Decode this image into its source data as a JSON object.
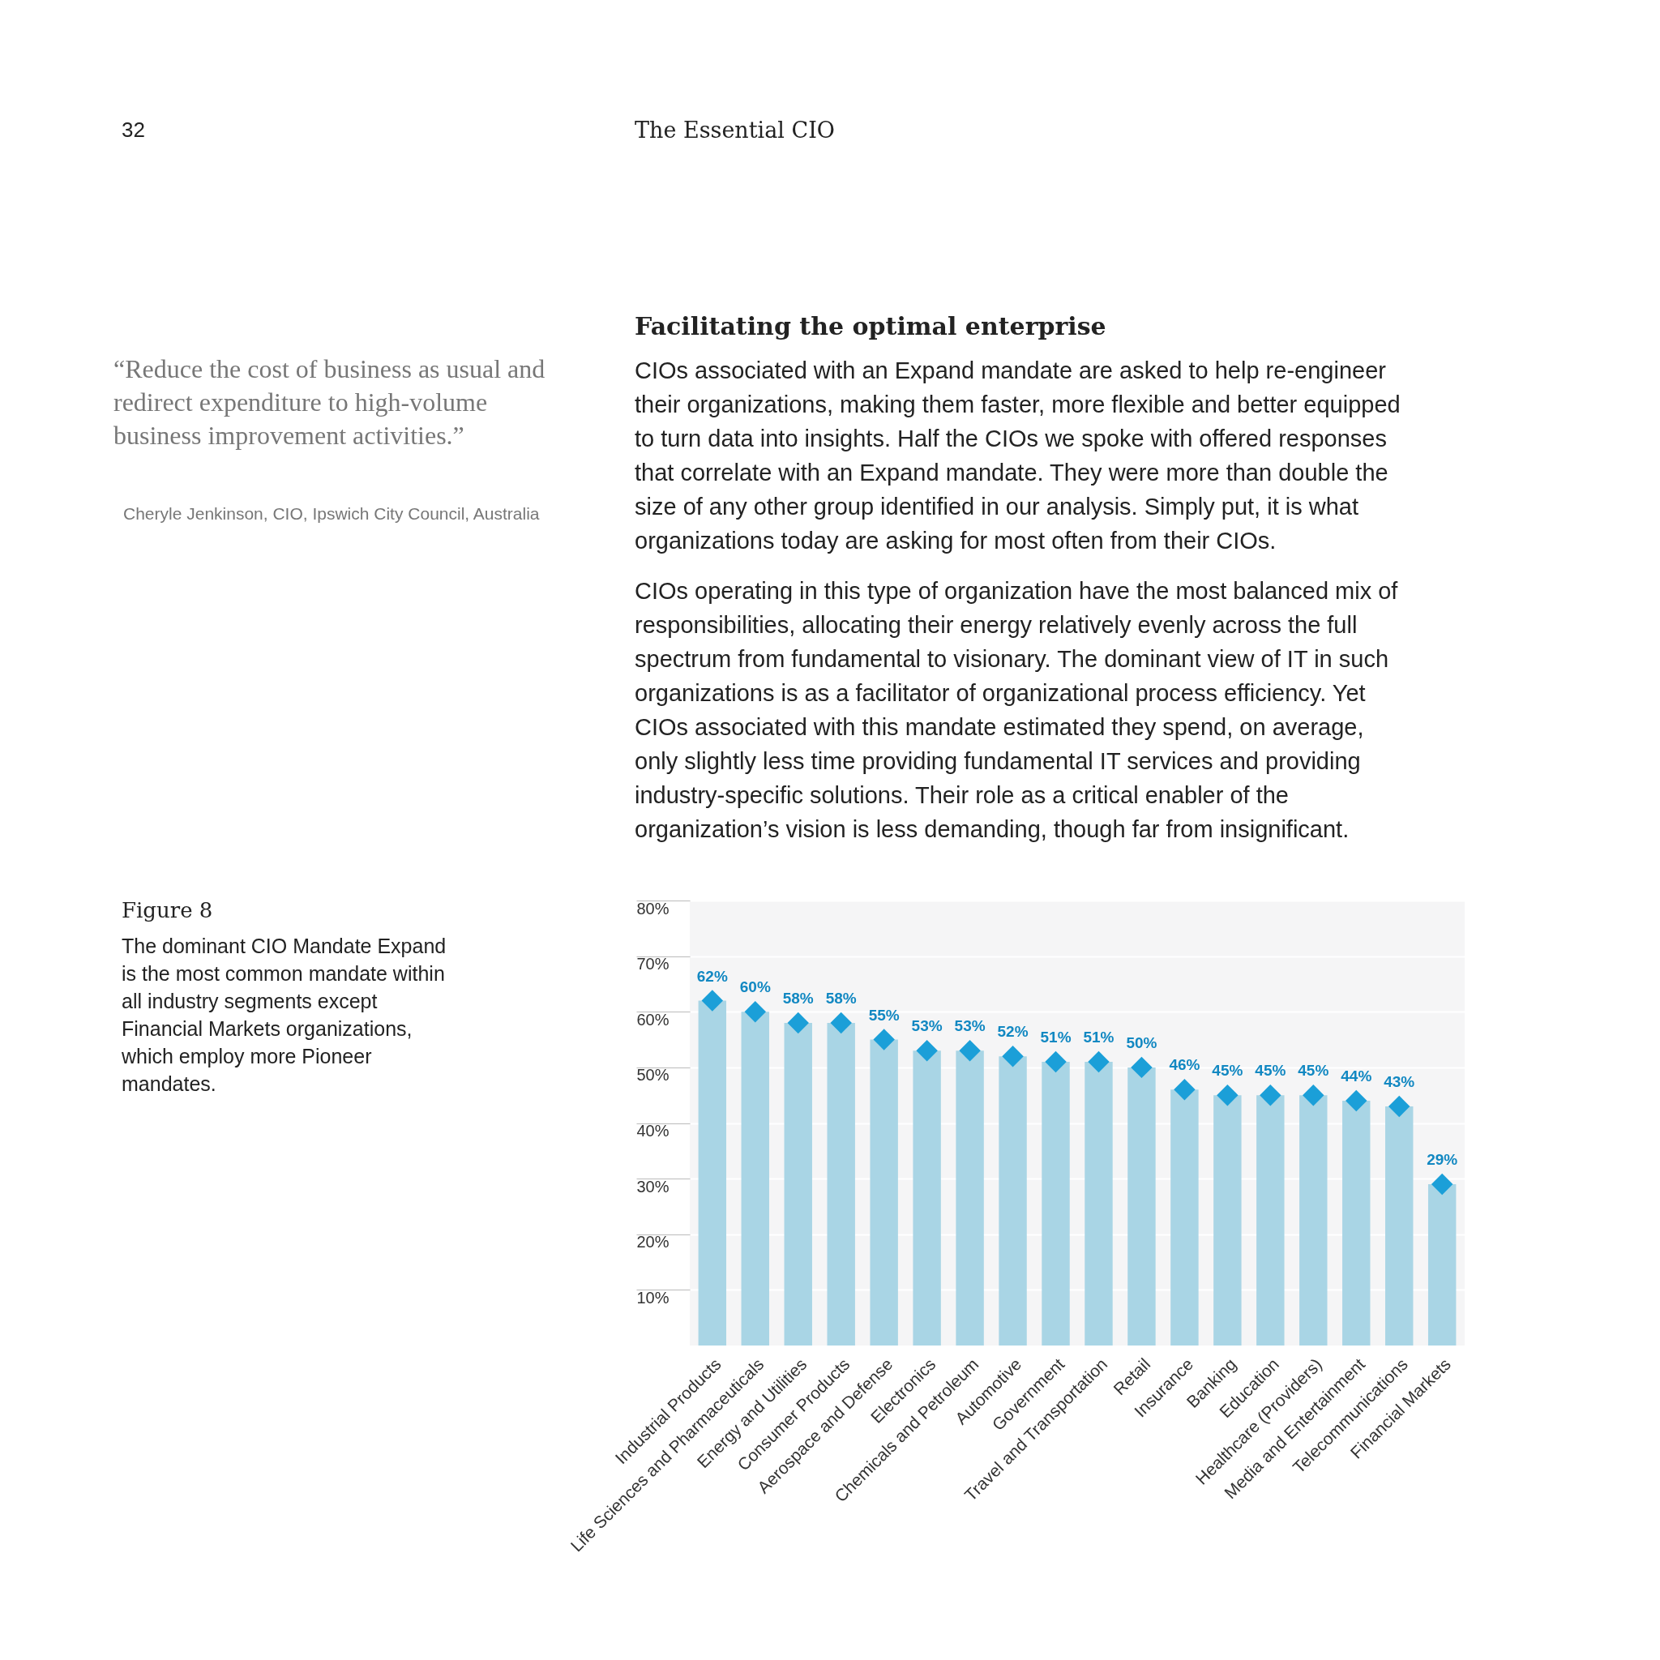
{
  "chart_data": {
    "type": "bar",
    "title": "Figure 8",
    "subtitle": "The dominant CIO Mandate  Expand is the most common mandate within all industry segments except Financial Markets organizations, which employ more Pioneer mandates.",
    "categories": [
      "Industrial Products",
      "Life Sciences and Pharmaceuticals",
      "Energy and Utilities",
      "Consumer Products",
      "Aerospace and Defense",
      "Electronics",
      "Chemicals and Petroleum",
      "Automotive",
      "Government",
      "Travel and Transportation",
      "Retail",
      "Insurance",
      "Banking",
      "Education",
      "Healthcare (Providers)",
      "Media and Entertainment",
      "Telecommunications",
      "Financial Markets"
    ],
    "series": [
      {
        "color": "#a9d5e5",
        "values": [
          62,
          60,
          58,
          58,
          55,
          53,
          53,
          52,
          51,
          51,
          50,
          46,
          45,
          45,
          45,
          44,
          43,
          29
        ],
        "value_labels": [
          "62%",
          "60%",
          "58%",
          "58%",
          "55%",
          "53%",
          "53%",
          "52%",
          "51%",
          "51%",
          "50%",
          "46%",
          "45%",
          "45%",
          "45%",
          "44%",
          "43%",
          "29%"
        ]
      },
      {
        "type": "scatter",
        "color": "#1b9fd8",
        "marker": "diamond",
        "x": [
          "Industrial Products",
          "Life Sciences and Pharmaceuticals",
          "Energy and Utilities",
          "Consumer Products",
          "Aerospace and Defense",
          "Electronics",
          "Chemicals and Petroleum",
          "Automotive",
          "Government",
          "Travel and Transportation",
          "Retail",
          "Insurance",
          "Banking",
          "Education",
          "Healthcare (Providers)",
          "Media and Entertainment",
          "Telecommunications",
          "Financial Markets"
        ],
        "values": [
          62,
          60,
          58,
          58,
          55,
          53,
          53,
          52,
          51,
          51,
          50,
          46,
          45,
          45,
          45,
          44,
          43,
          29
        ]
      }
    ],
    "ylim": [
      0,
      80
    ],
    "yticks": [
      {
        "value": 10,
        "label": "10%"
      },
      {
        "value": 20,
        "label": "20%"
      },
      {
        "value": 30,
        "label": "30%"
      },
      {
        "value": 40,
        "label": "40%"
      },
      {
        "value": 50,
        "label": "50%"
      },
      {
        "value": 60,
        "label": "60%"
      },
      {
        "value": 70,
        "label": "70%"
      },
      {
        "value": 80,
        "label": "80%"
      }
    ],
    "grid": "y",
    "annotations": [
      "32",
      "The Essential CIO",
      "“Reduce the cost of business as usual and redirect expenditure to high-volume business improvement activities.”",
      "Cheryle Jenkinson, CIO, Ipswich City Council, Australia",
      "Facilitating the optimal enterprise",
      "CIOs associated with an Expand mandate are asked to help re-engineer their organizations, making them faster, more flexible and better equipped to turn data into insights. Half the CIOs we spoke with offered responses that correlate with an Expand mandate. They were more than double the size of any other group identified in our analysis. Simply put, it is what organizations today are asking for most often from their CIOs.",
      "CIOs operating in this type of organization have the most balanced mix of responsibilities, allocating their energy relatively evenly across the full spectrum from fundamental to visionary. The dominant view of IT in such organizations is as a facilitator of organizational process efficiency. Yet CIOs associated with this mandate estimated they spend, on average, only slightly less time providing fundamental IT services and providing industry-specific solutions. Their role as a critical enabler of the organization’s vision is less demanding, though far from insignificant."
    ]
  }
}
